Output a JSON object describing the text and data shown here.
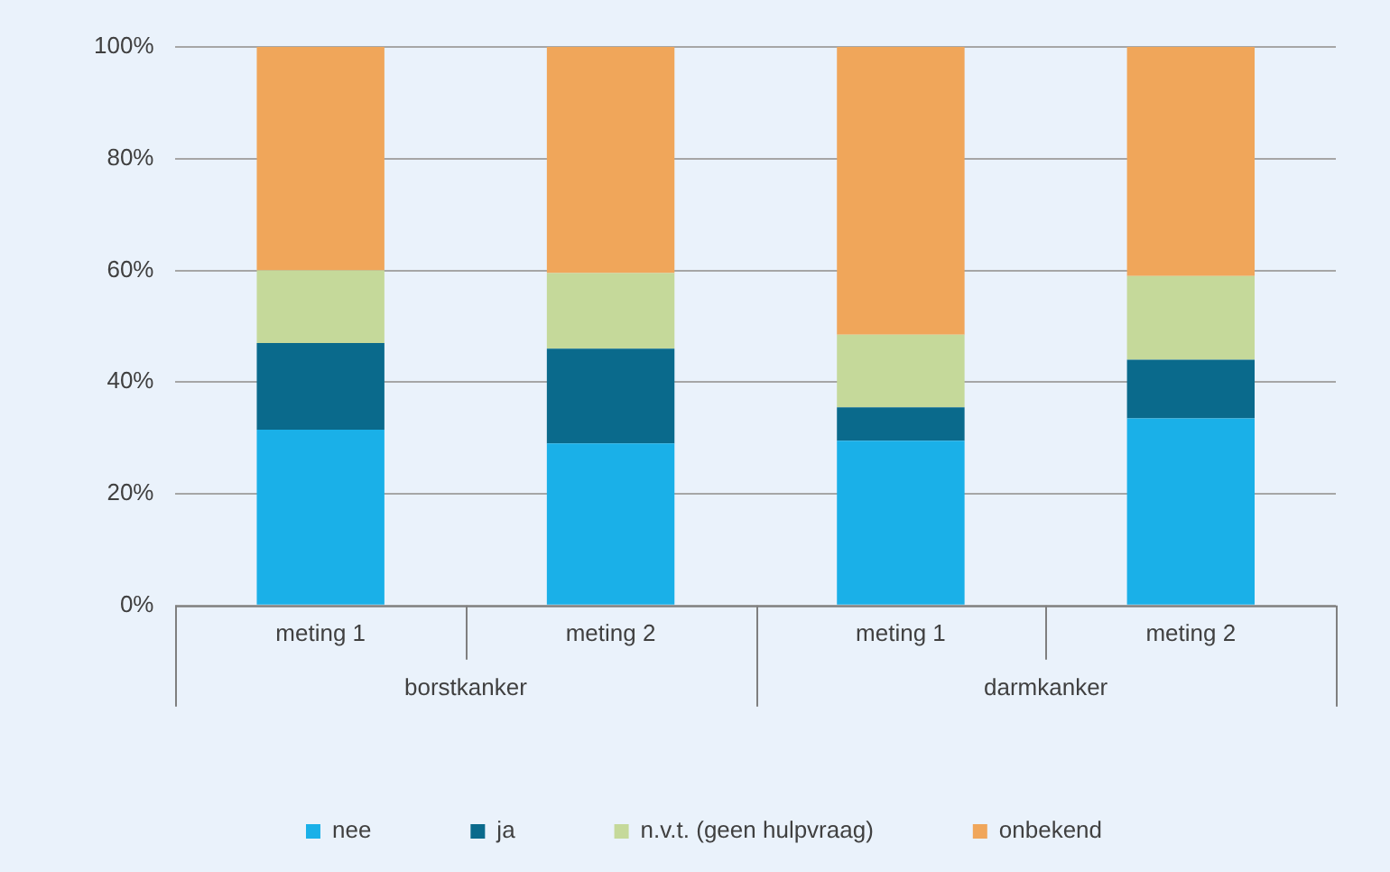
{
  "chart_data": {
    "type": "bar",
    "stacked": true,
    "categories": [
      "meting 1",
      "meting 2",
      "meting 1",
      "meting 2"
    ],
    "annotations": [
      "borstkanker",
      "darmkanker"
    ],
    "series": [
      {
        "name": "nee",
        "color": "#1ab0e8",
        "values": [
          31.5,
          29,
          29.5,
          33.5
        ]
      },
      {
        "name": "ja",
        "color": "#0a6a8c",
        "values": [
          15.5,
          17,
          6,
          10.5
        ]
      },
      {
        "name": "n.v.t. (geen hulpvraag)",
        "color": "#c5d99a",
        "values": [
          13,
          13.5,
          13,
          15
        ]
      },
      {
        "name": "onbekend",
        "color": "#f0a65a",
        "values": [
          40,
          40.5,
          51.5,
          41
        ]
      }
    ],
    "ylim": [
      0,
      100
    ],
    "yticks": [
      {
        "value": 0,
        "label": "0%"
      },
      {
        "value": 20,
        "label": "20%"
      },
      {
        "value": 40,
        "label": "40%"
      },
      {
        "value": 60,
        "label": "60%"
      },
      {
        "value": 80,
        "label": "80%"
      },
      {
        "value": 100,
        "label": "100%"
      }
    ],
    "grid": "y",
    "legend": "bottom"
  }
}
